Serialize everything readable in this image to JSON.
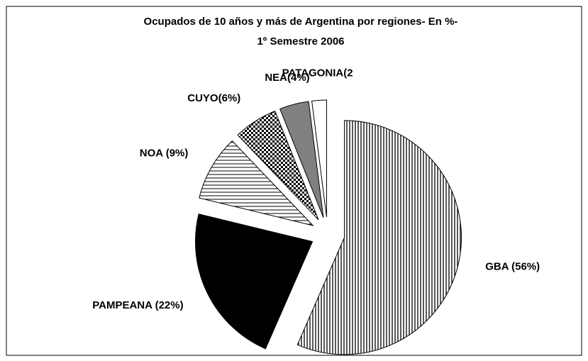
{
  "chart_data": {
    "type": "pie",
    "title": [
      "Ocupados de 10 años y más de Argentina por regiones- En %-",
      "1º Semestre 2006"
    ],
    "values": [
      56,
      22,
      9,
      6,
      4,
      2
    ],
    "value_labels": [
      "GBA (56%)",
      "PAMPEANA (22%)",
      "NOA (9%)",
      "CUYO(6%)",
      "NEA(4%)",
      "PATAGONIA(2"
    ],
    "colors": [
      "url(#p-vert)",
      "#000000",
      "url(#p-horiz)",
      "url(#p-check)",
      "#808080",
      "#ffffff"
    ]
  }
}
